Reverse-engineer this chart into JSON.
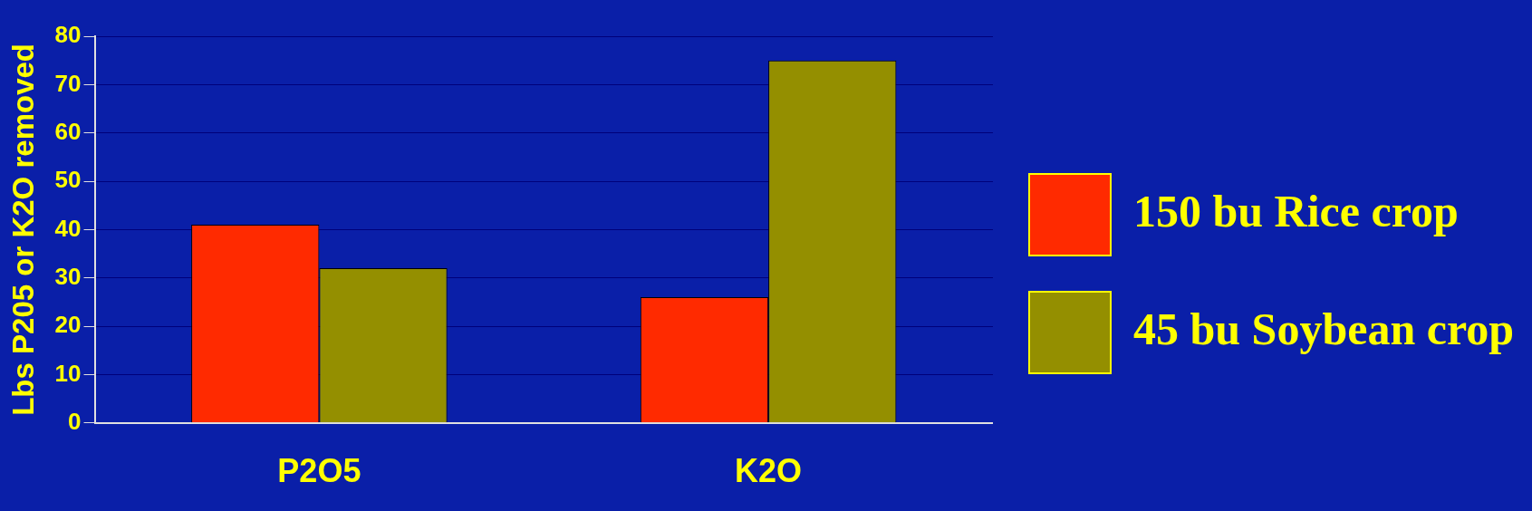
{
  "chart_data": {
    "type": "bar",
    "ylabel": "Lbs P205 or K2O removed",
    "categories": [
      "P2O5",
      "K2O"
    ],
    "series": [
      {
        "name": "150 bu Rice crop",
        "color": "#ff2a00",
        "values": [
          41,
          26
        ]
      },
      {
        "name": "45 bu Soybean crop",
        "color": "#948f00",
        "values": [
          32,
          75
        ]
      }
    ],
    "ylim": [
      0,
      80
    ],
    "yticks": [
      0,
      10,
      20,
      30,
      40,
      50,
      60,
      70,
      80
    ],
    "grid": "y",
    "legend": "right"
  }
}
